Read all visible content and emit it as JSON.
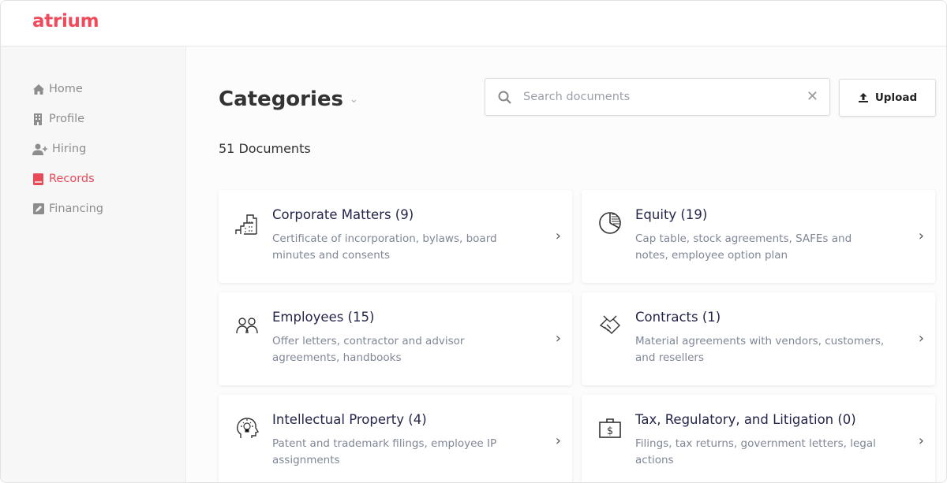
{
  "brand": {
    "logo": "atrium",
    "accent": "#ef4b5c"
  },
  "sidebar": {
    "items": [
      {
        "label": "Home",
        "icon": "home-icon",
        "active": false
      },
      {
        "label": "Profile",
        "icon": "building-icon",
        "active": false
      },
      {
        "label": "Hiring",
        "icon": "user-plus-icon",
        "active": false
      },
      {
        "label": "Records",
        "icon": "book-icon",
        "active": true
      },
      {
        "label": "Financing",
        "icon": "edit-icon",
        "active": false
      }
    ]
  },
  "main": {
    "title": "Categories",
    "count": "51 Documents",
    "search": {
      "placeholder": "Search documents",
      "value": ""
    },
    "upload_label": "Upload",
    "categories": [
      {
        "title": "Corporate Matters (9)",
        "desc": "Certificate of incorporation, bylaws, board minutes and consents",
        "icon": "buildings-icon"
      },
      {
        "title": "Equity (19)",
        "desc": "Cap table, stock agreements, SAFEs and notes, employee option plan",
        "icon": "pie-chart-icon"
      },
      {
        "title": "Employees (15)",
        "desc": "Offer letters, contractor and advisor agreements, handbooks",
        "icon": "people-icon"
      },
      {
        "title": "Contracts (1)",
        "desc": "Material agreements with vendors, customers, and resellers",
        "icon": "handshake-icon"
      },
      {
        "title": "Intellectual Property (4)",
        "desc": "Patent and trademark filings, employee IP assignments",
        "icon": "head-lightbulb-icon"
      },
      {
        "title": "Tax, Regulatory, and Litigation (0)",
        "desc": "Filings, tax returns, government letters, legal actions",
        "icon": "money-briefcase-icon"
      }
    ]
  }
}
